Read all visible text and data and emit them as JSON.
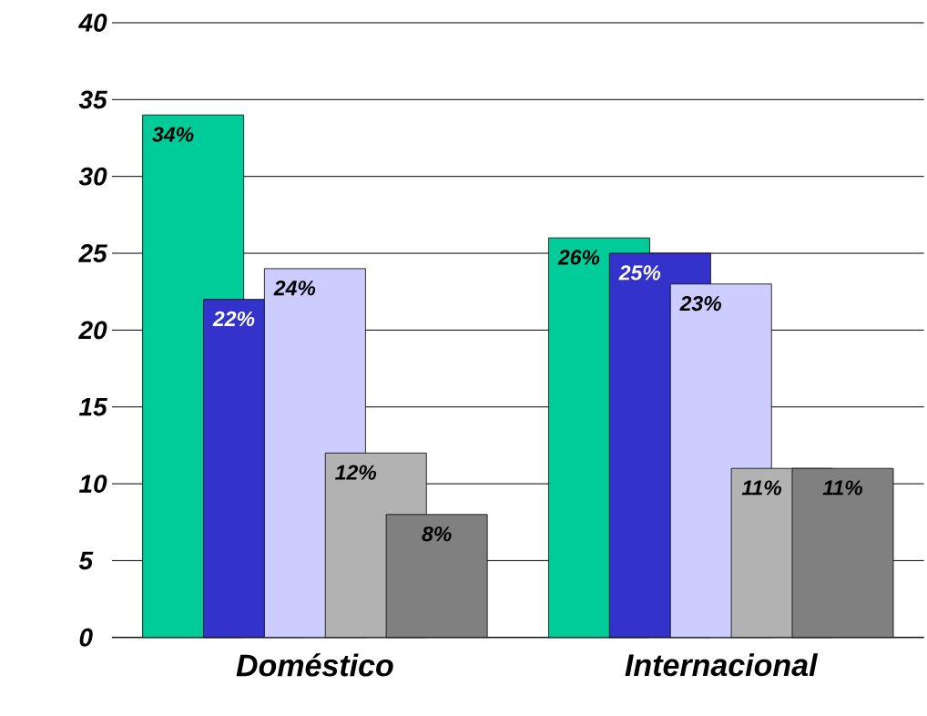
{
  "chart_data": {
    "type": "bar",
    "categories": [
      "Doméstico",
      "Internacional"
    ],
    "series": [
      {
        "color": "#00cc99",
        "values": [
          34,
          26
        ],
        "value_labels": [
          "34%",
          "26%"
        ]
      },
      {
        "color": "#3333cc",
        "values": [
          22,
          25
        ],
        "value_labels": [
          "22%",
          "25%"
        ]
      },
      {
        "color": "#ccccff",
        "values": [
          24,
          23
        ],
        "value_labels": [
          "24%",
          "23%"
        ]
      },
      {
        "color": "#b2b2b2",
        "values": [
          12,
          11
        ],
        "value_labels": [
          "12%",
          "11%"
        ]
      },
      {
        "color": "#808080",
        "values": [
          8,
          11
        ],
        "value_labels": [
          "8%",
          "11%"
        ]
      }
    ],
    "ylim": [
      0,
      40
    ],
    "yticks": [
      0,
      5,
      10,
      15,
      20,
      25,
      30,
      35,
      40
    ],
    "grid": "y"
  }
}
